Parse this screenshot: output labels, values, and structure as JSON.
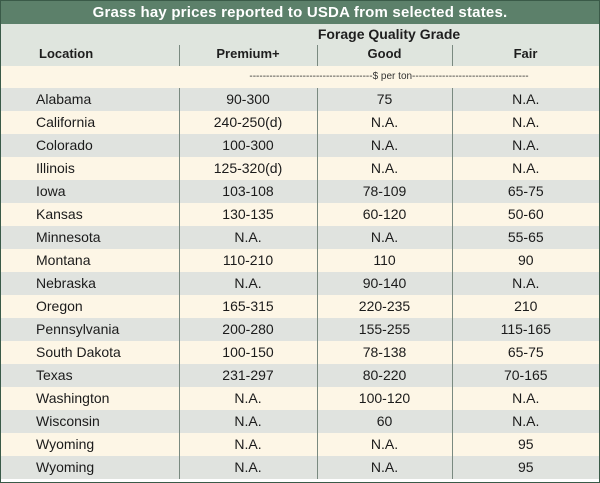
{
  "title": "Grass hay prices reported to USDA from selected states.",
  "header": {
    "group_title": "Forage Quality Grade",
    "location": "Location",
    "premium": "Premium+",
    "good": "Good",
    "fair": "Fair"
  },
  "unit_label": "-------------------------------------$ per ton-----------------------------------",
  "rows": [
    {
      "location": "Alabama",
      "premium": "90-300",
      "good": "75",
      "fair": "N.A."
    },
    {
      "location": "California",
      "premium": "240-250(d)",
      "good": "N.A.",
      "fair": "N.A."
    },
    {
      "location": "Colorado",
      "premium": "100-300",
      "good": "N.A.",
      "fair": "N.A."
    },
    {
      "location": "Illinois",
      "premium": "125-320(d)",
      "good": "N.A.",
      "fair": "N.A."
    },
    {
      "location": "Iowa",
      "premium": "103-108",
      "good": "78-109",
      "fair": "65-75"
    },
    {
      "location": "Kansas",
      "premium": "130-135",
      "good": "60-120",
      "fair": "50-60"
    },
    {
      "location": "Minnesota",
      "premium": "N.A.",
      "good": "N.A.",
      "fair": "55-65"
    },
    {
      "location": "Montana",
      "premium": "110-210",
      "good": "110",
      "fair": "90"
    },
    {
      "location": "Nebraska",
      "premium": "N.A.",
      "good": "90-140",
      "fair": "N.A."
    },
    {
      "location": "Oregon",
      "premium": "165-315",
      "good": "220-235",
      "fair": "210"
    },
    {
      "location": "Pennsylvania",
      "premium": "200-280",
      "good": "155-255",
      "fair": "115-165"
    },
    {
      "location": "South Dakota",
      "premium": "100-150",
      "good": "78-138",
      "fair": "65-75"
    },
    {
      "location": "Texas",
      "premium": "231-297",
      "good": "80-220",
      "fair": "70-165"
    },
    {
      "location": "Washington",
      "premium": "N.A.",
      "good": "100-120",
      "fair": "N.A."
    },
    {
      "location": "Wisconsin",
      "premium": "N.A.",
      "good": "60",
      "fair": "N.A."
    },
    {
      "location": "Wyoming",
      "premium": "N.A.",
      "good": "N.A.",
      "fair": "95"
    },
    {
      "location": "Wyoming",
      "premium": "N.A.",
      "good": "N.A.",
      "fair": "95"
    }
  ]
}
